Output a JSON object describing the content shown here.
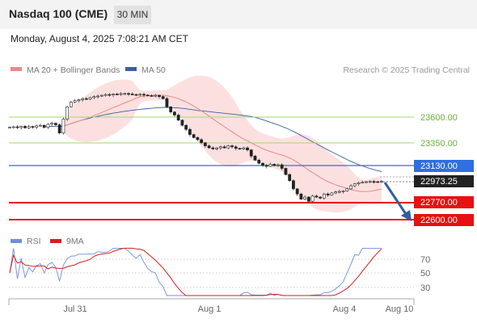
{
  "header": {
    "title": "Nasdaq 100 (CME)",
    "timeframe": "30 MIN",
    "datetime": "Monday, August 4, 2025 7:08:21 AM CET"
  },
  "legend": {
    "ma20_bollinger": "MA 20 + Bollinger Bands",
    "ma50": "MA 50",
    "research": "Research © 2025 Trading Central"
  },
  "price_levels": [
    {
      "label": "23600.00",
      "kind": "resistance",
      "color": "#9fd86b"
    },
    {
      "label": "23350.00",
      "kind": "resistance",
      "color": "#9fd86b"
    },
    {
      "label": "23130.00",
      "kind": "pivot",
      "color": "#2f6fe0"
    },
    {
      "label": "22973.25",
      "kind": "last",
      "color": "#222222"
    },
    {
      "label": "22770.00",
      "kind": "support",
      "color": "#e81010"
    },
    {
      "label": "22600.00",
      "kind": "support",
      "color": "#e81010"
    }
  ],
  "rsi_legend": {
    "rsi": "RSI",
    "ma9": "9MA"
  },
  "rsi_levels": [
    "70",
    "50",
    "30"
  ],
  "x_axis": [
    "Jul 31",
    "Aug 1",
    "Aug 4",
    "Aug 10"
  ],
  "colors": {
    "ma20": "#e88a8a",
    "ma50": "#3d5fa0",
    "bands": "#fbdada",
    "rsi": "#6f8fd8",
    "rsi_ma": "#d61f1f",
    "arrow": "#2f5f9e"
  },
  "chart_data": {
    "type": "candlestick",
    "series": [
      {
        "name": "MA 20 + Bollinger Bands"
      },
      {
        "name": "MA 50"
      }
    ],
    "close": [
      23500,
      23505,
      23498,
      23510,
      23495,
      23508,
      23502,
      23515,
      23520,
      23500,
      23530,
      23540,
      23525,
      23445,
      23580,
      23700,
      23745,
      23760,
      23770,
      23780,
      23775,
      23790,
      23800,
      23805,
      23812,
      23820,
      23815,
      23825,
      23820,
      23828,
      23830,
      23825,
      23820,
      23818,
      23822,
      23815,
      23810,
      23808,
      23812,
      23800,
      23780,
      23700,
      23650,
      23620,
      23570,
      23520,
      23480,
      23430,
      23400,
      23380,
      23350,
      23320,
      23300,
      23290,
      23300,
      23310,
      23300,
      23320,
      23310,
      23295,
      23290,
      23300,
      23280,
      23220,
      23180,
      23150,
      23130,
      23120,
      23140,
      23130,
      23135,
      23100,
      23040,
      22980,
      22900,
      22850,
      22800,
      22820,
      22780,
      22830,
      22820,
      22810,
      22850,
      22840,
      22860,
      22870,
      22875,
      22880,
      22900,
      22930,
      22950,
      22960,
      22965,
      22970,
      22972,
      22970,
      22968,
      22973
    ],
    "y_axis_levels": [
      23600,
      23350,
      23130,
      22973.25,
      22770,
      22600
    ],
    "rsi_axis": [
      70,
      50,
      30
    ]
  }
}
